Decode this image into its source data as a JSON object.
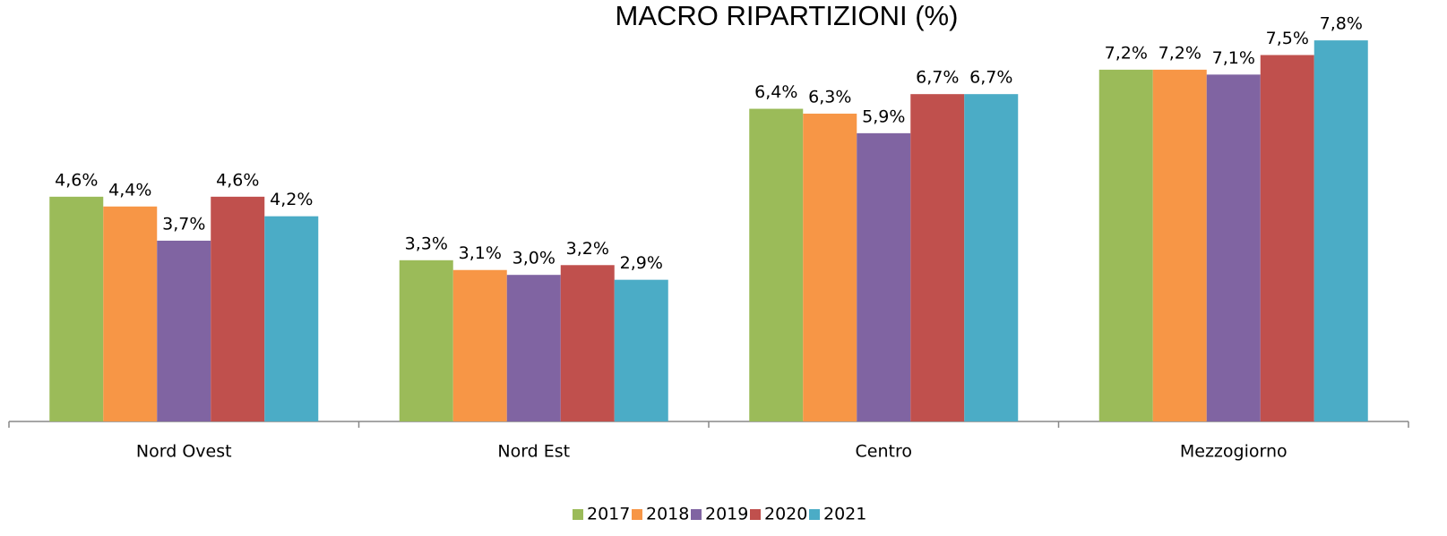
{
  "chart_data": {
    "type": "bar",
    "title": "MACRO RIPARTIZIONI (%)",
    "categories": [
      "Nord Ovest",
      "Nord Est",
      "Centro",
      "Mezzogiorno"
    ],
    "series": [
      {
        "name": "2017",
        "color": "#9bbb59",
        "values": [
          4.6,
          3.3,
          6.4,
          7.2
        ],
        "value_labels": [
          "4,6%",
          "3,3%",
          "6,4%",
          "7,2%"
        ]
      },
      {
        "name": "2018",
        "color": "#f79646",
        "values": [
          4.4,
          3.1,
          6.3,
          7.2
        ],
        "value_labels": [
          "4,4%",
          "3,1%",
          "6,3%",
          "7,2%"
        ]
      },
      {
        "name": "2019",
        "color": "#8064a2",
        "values": [
          3.7,
          3.0,
          5.9,
          7.1
        ],
        "value_labels": [
          "3,7%",
          "3,0%",
          "5,9%",
          "7,1%"
        ]
      },
      {
        "name": "2020",
        "color": "#c0504d",
        "values": [
          4.6,
          3.2,
          6.7,
          7.5
        ],
        "value_labels": [
          "4,6%",
          "3,2%",
          "6,7%",
          "7,5%"
        ]
      },
      {
        "name": "2021",
        "color": "#4bacc6",
        "values": [
          4.2,
          2.9,
          6.7,
          7.8
        ],
        "value_labels": [
          "4,2%",
          "2,9%",
          "6,7%",
          "7,8%"
        ]
      }
    ],
    "legend": "bottom"
  }
}
